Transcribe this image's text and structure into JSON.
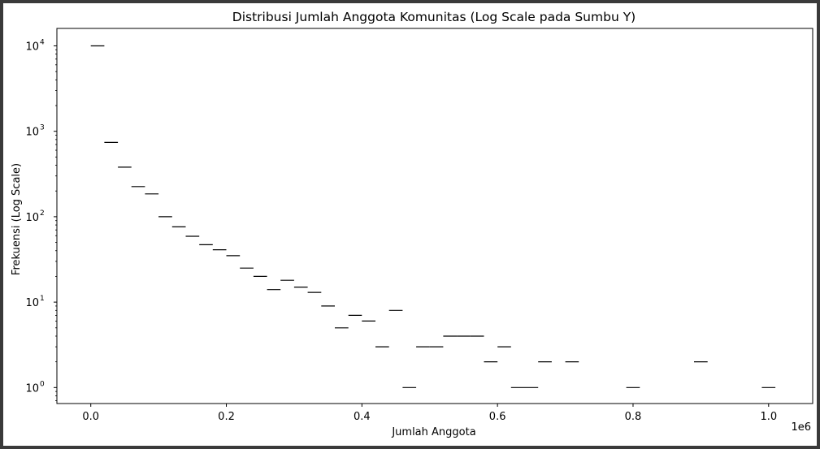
{
  "chart_data": {
    "type": "bar",
    "style": "histogram-step",
    "title": "Distribusi Jumlah Anggota Komunitas (Log Scale pada Sumbu Y)",
    "xlabel": "Jumlah Anggota",
    "ylabel": "Frekuensi (Log Scale)",
    "x_offset_text": "1e6",
    "yscale": "log",
    "xlim": [
      -0.05,
      1.065
    ],
    "ylim": [
      0.65,
      16000
    ],
    "x_ticks": [
      {
        "value": 0.0,
        "label": "0.0"
      },
      {
        "value": 0.2,
        "label": "0.2"
      },
      {
        "value": 0.4,
        "label": "0.4"
      },
      {
        "value": 0.6,
        "label": "0.6"
      },
      {
        "value": 0.8,
        "label": "0.8"
      },
      {
        "value": 1.0,
        "label": "1.0"
      }
    ],
    "y_ticks": [
      {
        "value": 1,
        "base": "10",
        "exp": "0"
      },
      {
        "value": 10,
        "base": "10",
        "exp": "1"
      },
      {
        "value": 100,
        "base": "10",
        "exp": "2"
      },
      {
        "value": 1000,
        "base": "10",
        "exp": "3"
      },
      {
        "value": 10000,
        "base": "10",
        "exp": "4"
      }
    ],
    "grid": false,
    "legend": false,
    "bin_width": 0.02,
    "bar_edge_color": "#000000",
    "bins": [
      {
        "x": 0.0,
        "count": 10000
      },
      {
        "x": 0.02,
        "count": 740
      },
      {
        "x": 0.04,
        "count": 380
      },
      {
        "x": 0.06,
        "count": 225
      },
      {
        "x": 0.08,
        "count": 185
      },
      {
        "x": 0.1,
        "count": 100
      },
      {
        "x": 0.12,
        "count": 76
      },
      {
        "x": 0.14,
        "count": 59
      },
      {
        "x": 0.16,
        "count": 47
      },
      {
        "x": 0.18,
        "count": 41
      },
      {
        "x": 0.2,
        "count": 35
      },
      {
        "x": 0.22,
        "count": 25
      },
      {
        "x": 0.24,
        "count": 20
      },
      {
        "x": 0.26,
        "count": 14
      },
      {
        "x": 0.28,
        "count": 18
      },
      {
        "x": 0.3,
        "count": 15
      },
      {
        "x": 0.32,
        "count": 13
      },
      {
        "x": 0.34,
        "count": 9
      },
      {
        "x": 0.36,
        "count": 5
      },
      {
        "x": 0.38,
        "count": 7
      },
      {
        "x": 0.4,
        "count": 6
      },
      {
        "x": 0.42,
        "count": 3
      },
      {
        "x": 0.44,
        "count": 8
      },
      {
        "x": 0.46,
        "count": 1
      },
      {
        "x": 0.48,
        "count": 3
      },
      {
        "x": 0.5,
        "count": 3
      },
      {
        "x": 0.52,
        "count": 4
      },
      {
        "x": 0.54,
        "count": 4
      },
      {
        "x": 0.56,
        "count": 4
      },
      {
        "x": 0.58,
        "count": 2
      },
      {
        "x": 0.6,
        "count": 3
      },
      {
        "x": 0.62,
        "count": 1
      },
      {
        "x": 0.64,
        "count": 1
      },
      {
        "x": 0.66,
        "count": 2
      },
      {
        "x": 0.7,
        "count": 2
      },
      {
        "x": 0.79,
        "count": 1
      },
      {
        "x": 0.89,
        "count": 2
      },
      {
        "x": 0.99,
        "count": 1
      }
    ]
  }
}
